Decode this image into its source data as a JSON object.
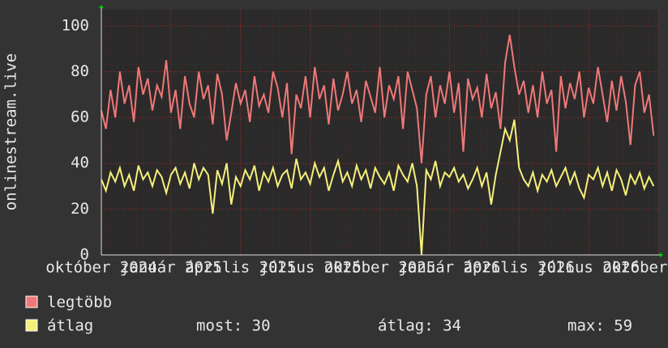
{
  "chart_data": {
    "type": "line",
    "y_label": "onlinestream.live",
    "xlim": [
      0,
      24
    ],
    "ylim": [
      0,
      107
    ],
    "xticks": [
      {
        "value": 0,
        "label": "október 2024"
      },
      {
        "value": 3,
        "label": "január 2025"
      },
      {
        "value": 6,
        "label": "április 2025"
      },
      {
        "value": 9,
        "label": "július 2025"
      },
      {
        "value": 12,
        "label": "október 2025"
      },
      {
        "value": 15,
        "label": "január 2026"
      },
      {
        "value": 18,
        "label": "április 2026"
      },
      {
        "value": 21,
        "label": "július 2026"
      },
      {
        "value": 24,
        "label": "október 2026"
      }
    ],
    "yticks": [
      0,
      20,
      40,
      60,
      80,
      100
    ],
    "grid": true,
    "x": [
      0,
      0.2,
      0.4,
      0.6,
      0.8,
      1,
      1.2,
      1.4,
      1.6,
      1.8,
      2,
      2.2,
      2.4,
      2.6,
      2.8,
      3,
      3.2,
      3.4,
      3.6,
      3.8,
      4,
      4.2,
      4.4,
      4.6,
      4.8,
      5,
      5.2,
      5.4,
      5.6,
      5.8,
      6,
      6.2,
      6.4,
      6.6,
      6.8,
      7,
      7.2,
      7.4,
      7.6,
      7.8,
      8,
      8.2,
      8.4,
      8.6,
      8.8,
      9,
      9.2,
      9.4,
      9.6,
      9.8,
      10,
      10.2,
      10.4,
      10.6,
      10.8,
      11,
      11.2,
      11.4,
      11.6,
      11.8,
      12,
      12.2,
      12.4,
      12.6,
      12.8,
      13,
      13.2,
      13.4,
      13.6,
      13.8,
      14,
      14.2,
      14.4,
      14.6,
      14.8,
      15,
      15.2,
      15.4,
      15.6,
      15.8,
      16,
      16.2,
      16.4,
      16.6,
      16.8,
      17,
      17.2,
      17.4,
      17.6,
      17.8,
      18,
      18.2,
      18.4,
      18.6,
      18.8,
      19,
      19.2,
      19.4,
      19.6,
      19.8,
      20,
      20.2,
      20.4,
      20.6,
      20.8,
      21,
      21.2,
      21.4,
      21.6,
      21.8,
      22,
      22.2,
      22.4,
      22.6,
      22.8,
      23,
      23.2,
      23.4,
      23.6,
      23.8
    ],
    "series": [
      {
        "name": "legtöbb",
        "color": "#f07878",
        "values": [
          63,
          55,
          72,
          60,
          80,
          66,
          74,
          58,
          82,
          70,
          77,
          63,
          74,
          69,
          85,
          62,
          72,
          55,
          78,
          66,
          60,
          80,
          68,
          74,
          57,
          79,
          70,
          50,
          62,
          75,
          66,
          72,
          58,
          78,
          65,
          70,
          62,
          80,
          73,
          60,
          75,
          44,
          70,
          64,
          78,
          60,
          82,
          68,
          74,
          57,
          77,
          63,
          70,
          80,
          66,
          72,
          58,
          76,
          69,
          62,
          82,
          60,
          74,
          68,
          78,
          55,
          80,
          72,
          64,
          40,
          70,
          78,
          60,
          74,
          66,
          80,
          62,
          75,
          45,
          77,
          68,
          73,
          60,
          79,
          64,
          71,
          55,
          84,
          96,
          82,
          70,
          76,
          62,
          74,
          60,
          80,
          66,
          72,
          45,
          78,
          64,
          75,
          68,
          80,
          60,
          73,
          66,
          82,
          70,
          58,
          76,
          63,
          78,
          67,
          48,
          74,
          80,
          62,
          70,
          52
        ]
      },
      {
        "name": "átlag",
        "color": "#f5f07a",
        "values": [
          33,
          28,
          36,
          32,
          38,
          30,
          35,
          28,
          39,
          33,
          36,
          30,
          37,
          34,
          27,
          35,
          38,
          31,
          36,
          29,
          40,
          33,
          38,
          35,
          18,
          37,
          31,
          40,
          22,
          34,
          30,
          37,
          33,
          39,
          28,
          36,
          32,
          38,
          30,
          35,
          37,
          29,
          42,
          33,
          36,
          31,
          40,
          34,
          38,
          28,
          35,
          41,
          32,
          36,
          30,
          39,
          33,
          37,
          29,
          38,
          34,
          31,
          36,
          28,
          39,
          35,
          32,
          40,
          30,
          0,
          37,
          33,
          41,
          30,
          36,
          34,
          38,
          32,
          35,
          29,
          33,
          38,
          30,
          36,
          22,
          35,
          45,
          55,
          50,
          59,
          38,
          33,
          30,
          36,
          28,
          35,
          32,
          37,
          30,
          34,
          38,
          31,
          36,
          29,
          25,
          35,
          33,
          38,
          30,
          36,
          28,
          37,
          33,
          26,
          35,
          31,
          36,
          29,
          34,
          30
        ]
      }
    ],
    "stats": [
      "most: 30",
      "átlag: 34",
      "max: 59"
    ]
  }
}
